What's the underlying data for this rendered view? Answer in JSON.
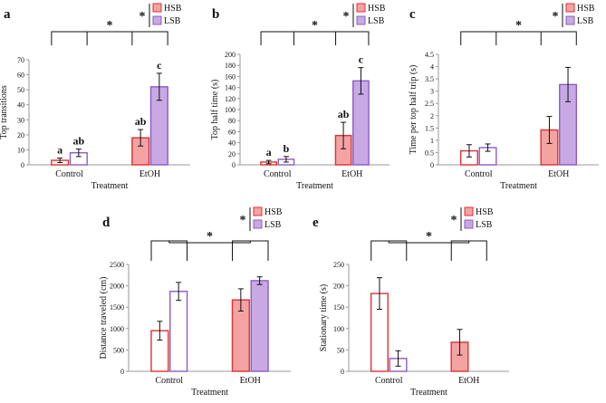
{
  "colors": {
    "HSB": "#e03030",
    "HSB_fill": "#f4a3a3",
    "LSB": "#8a5cc4",
    "LSB_fill": "#c8a9e3",
    "axis": "#999999",
    "ink": "#111111"
  },
  "chart_data": [
    {
      "id": "a",
      "panel_label": "a",
      "type": "bar",
      "ylabel": "Top transitions",
      "xlabel": "Treatment",
      "ylim": [
        0,
        70
      ],
      "yticks": [
        0,
        10,
        20,
        30,
        40,
        50,
        60,
        70
      ],
      "categories": [
        "Control",
        "EtOH"
      ],
      "series": [
        {
          "name": "HSB",
          "values": [
            3,
            18
          ],
          "errors": [
            1.5,
            5.5
          ]
        },
        {
          "name": "LSB",
          "values": [
            8,
            52
          ],
          "errors": [
            2.5,
            9
          ]
        }
      ],
      "letters": [
        [
          "a",
          "ab"
        ],
        [
          "ab",
          "c"
        ]
      ],
      "significance": "*",
      "legend": [
        "HSB",
        "LSB"
      ],
      "legend_star": "*"
    },
    {
      "id": "b",
      "panel_label": "b",
      "type": "bar",
      "ylabel": "Top half time (s)",
      "xlabel": "Treatment",
      "ylim": [
        0,
        200
      ],
      "yticks": [
        0,
        20,
        40,
        60,
        80,
        100,
        120,
        140,
        160,
        180,
        200
      ],
      "categories": [
        "Control",
        "EtOH"
      ],
      "series": [
        {
          "name": "HSB",
          "values": [
            5,
            53
          ],
          "errors": [
            3,
            24
          ]
        },
        {
          "name": "LSB",
          "values": [
            10,
            152
          ],
          "errors": [
            5,
            24
          ]
        }
      ],
      "letters": [
        [
          "a",
          "ab"
        ],
        [
          "b",
          "c"
        ]
      ],
      "significance": "*",
      "legend": [
        "HSB",
        "LSB"
      ],
      "legend_star": "*"
    },
    {
      "id": "c",
      "panel_label": "c",
      "type": "bar",
      "ylabel": "Time per top half trip (s)",
      "xlabel": "Treatment",
      "ylim": [
        0,
        4.5
      ],
      "yticks": [
        "0",
        "0.5",
        "1",
        "1.5",
        "2",
        "2.5",
        "3",
        "3.5",
        "4",
        "4.5"
      ],
      "categories": [
        "Control",
        "EtOH"
      ],
      "series": [
        {
          "name": "HSB",
          "values": [
            0.57,
            1.42
          ],
          "errors": [
            0.25,
            0.55
          ]
        },
        {
          "name": "LSB",
          "values": [
            0.7,
            3.27
          ],
          "errors": [
            0.15,
            0.7
          ]
        }
      ],
      "letters": [
        [
          "",
          ""
        ],
        [
          "",
          ""
        ]
      ],
      "significance": "*",
      "legend": [
        "HSB",
        "LSB"
      ],
      "legend_star": "*"
    },
    {
      "id": "d",
      "panel_label": "d",
      "type": "bar",
      "ylabel": "Distance traveled (cm)",
      "xlabel": "Treatment",
      "ylim": [
        0,
        2500
      ],
      "yticks": [
        0,
        500,
        1000,
        1500,
        2000,
        2500
      ],
      "categories": [
        "Control",
        "EtOH"
      ],
      "series": [
        {
          "name": "HSB",
          "values": [
            950,
            1670
          ],
          "errors": [
            220,
            260
          ]
        },
        {
          "name": "LSB",
          "values": [
            1870,
            2120
          ],
          "errors": [
            210,
            90
          ]
        }
      ],
      "letters": [
        [
          "",
          ""
        ],
        [
          "",
          ""
        ]
      ],
      "significance": "*",
      "legend": [
        "HSB",
        "LSB"
      ],
      "legend_star": "*"
    },
    {
      "id": "e",
      "panel_label": "e",
      "type": "bar",
      "ylabel": "Stationary time (s)",
      "xlabel": "Treatment",
      "ylim": [
        0,
        250
      ],
      "yticks": [
        0,
        50,
        100,
        150,
        200,
        250
      ],
      "categories": [
        "Control",
        "EtOH"
      ],
      "series": [
        {
          "name": "HSB",
          "values": [
            182,
            68
          ],
          "errors": [
            37,
            30
          ]
        },
        {
          "name": "LSB",
          "values": [
            30,
            0
          ],
          "errors": [
            18,
            0
          ]
        }
      ],
      "letters": [
        [
          "",
          ""
        ],
        [
          "",
          ""
        ]
      ],
      "significance": "*",
      "legend": [
        "HSB",
        "LSB"
      ],
      "legend_star": "*"
    }
  ]
}
